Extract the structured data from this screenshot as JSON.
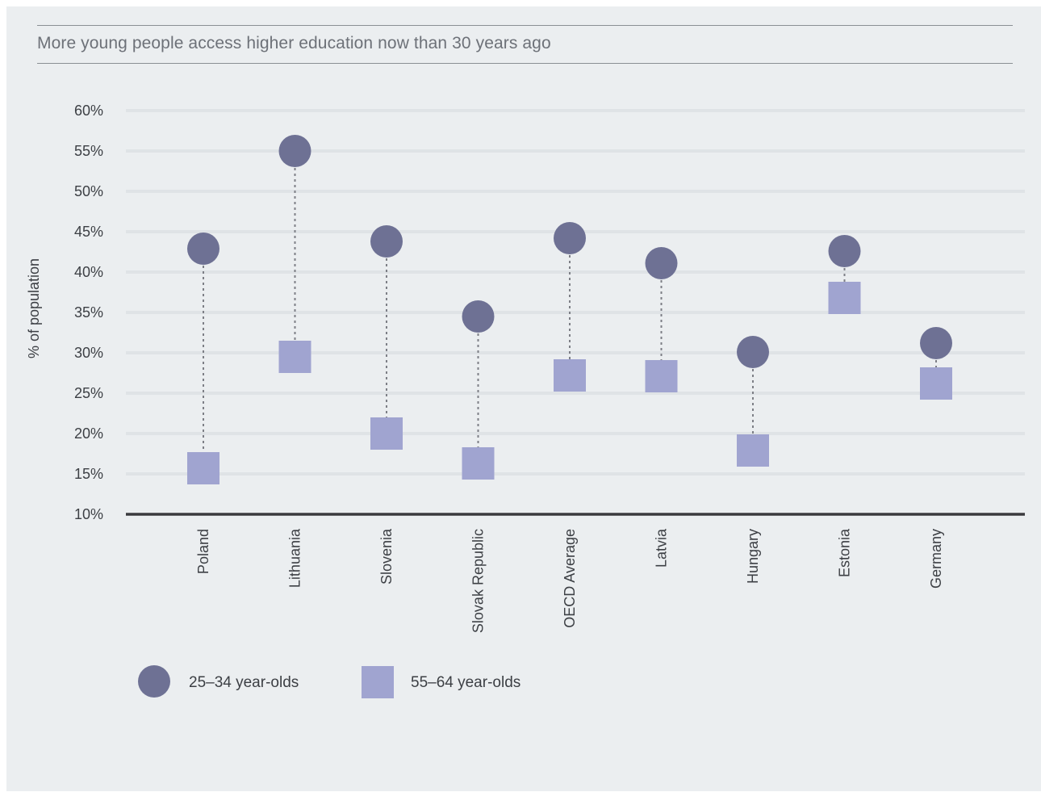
{
  "chart_data": {
    "type": "dumbbell",
    "title": "More young people access higher education now than 30 years ago",
    "ylabel": "% of population",
    "xlabel": "",
    "ylim": [
      10,
      60
    ],
    "yticks": [
      10,
      15,
      20,
      25,
      30,
      35,
      40,
      45,
      50,
      55,
      60
    ],
    "ytick_labels": [
      "10%",
      "15%",
      "20%",
      "25%",
      "30%",
      "35%",
      "40%",
      "45%",
      "50%",
      "55%",
      "60%"
    ],
    "categories": [
      "Poland",
      "Lithuania",
      "Slovenia",
      "Slovak Republic",
      "OECD Average",
      "Latvia",
      "Hungary",
      "Estonia",
      "Germany"
    ],
    "series": [
      {
        "name": "25–34 year-olds",
        "marker": "circle",
        "color": "#6e7194",
        "values": [
          42.9,
          55.0,
          43.8,
          34.5,
          44.2,
          41.1,
          30.1,
          42.6,
          31.2
        ]
      },
      {
        "name": "55–64 year-olds",
        "marker": "square",
        "color": "#a0a4d0",
        "values": [
          15.7,
          29.5,
          20.0,
          16.3,
          27.2,
          27.1,
          17.9,
          36.8,
          26.2
        ]
      }
    ],
    "grid": true,
    "legend": "bottom-left",
    "connector_color": "#7d7f86",
    "grid_color": "#dfe3e6",
    "axis_color": "#3a3a3e"
  }
}
